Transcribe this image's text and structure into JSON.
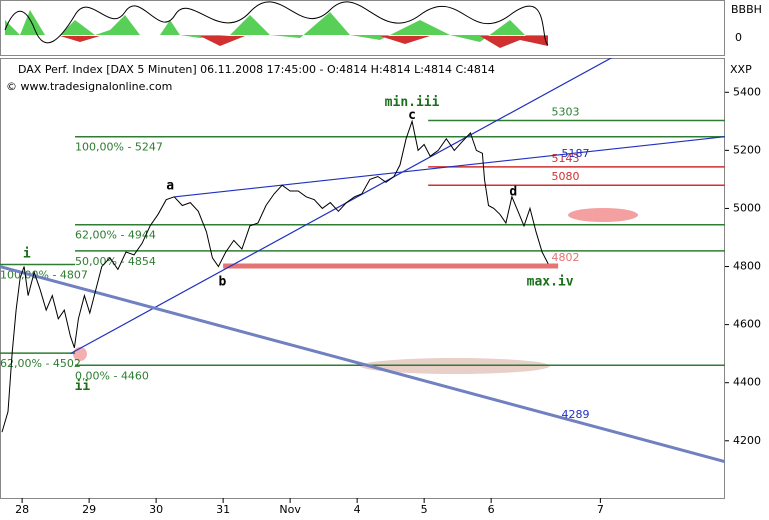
{
  "chart_data": {
    "type": "line",
    "header": "DAX Perf. Index [DAX  5 Minuten] 06.11.2008 17:45:00 - O:4814 H:4814 L:4814 C:4814",
    "source": "© www.tradesignalonline.com",
    "axis_name": "XXP",
    "indicator_name": "BBBH",
    "indicator_tick": "0",
    "xlim": [
      -0.33,
      10.49
    ],
    "ylim": [
      4003,
      5518
    ],
    "xticks": [
      {
        "value": 0,
        "label": "28"
      },
      {
        "value": 1,
        "label": "29"
      },
      {
        "value": 2,
        "label": "30"
      },
      {
        "value": 3,
        "label": "31"
      },
      {
        "value": 4,
        "label": "Nov"
      },
      {
        "value": 5,
        "label": "4"
      },
      {
        "value": 6,
        "label": "5"
      },
      {
        "value": 7,
        "label": "6"
      },
      {
        "value": 8.63,
        "label": "7"
      }
    ],
    "yticks": [
      4200,
      4400,
      4600,
      4800,
      5000,
      5200,
      5400
    ],
    "series": [
      {
        "color": "#000000",
        "x": [
          -0.3,
          -0.21,
          -0.15,
          -0.09,
          -0.03,
          0.03,
          0.09,
          0.18,
          0.27,
          0.36,
          0.45,
          0.54,
          0.63,
          0.72,
          0.78,
          0.84,
          0.93,
          1.01,
          1.1,
          1.19,
          1.31,
          1.43,
          1.55,
          1.67,
          1.79,
          1.91,
          2.03,
          2.15,
          2.27,
          2.39,
          2.51,
          2.63,
          2.75,
          2.84,
          2.93,
          3.04,
          3.16,
          3.28,
          3.4,
          3.52,
          3.64,
          3.76,
          3.88,
          4.0,
          4.12,
          4.24,
          4.36,
          4.48,
          4.6,
          4.72,
          4.84,
          4.96,
          5.07,
          5.19,
          5.31,
          5.43,
          5.55,
          5.64,
          5.73,
          5.82,
          5.91,
          6.0,
          6.09,
          6.21,
          6.33,
          6.45,
          6.57,
          6.69,
          6.78,
          6.87,
          6.9,
          6.96,
          7.04,
          7.13,
          7.22,
          7.31,
          7.4,
          7.49,
          7.58,
          7.67,
          7.76,
          7.85
        ],
        "values": [
          4230,
          4300,
          4500,
          4650,
          4760,
          4800,
          4700,
          4780,
          4720,
          4650,
          4700,
          4620,
          4650,
          4560,
          4520,
          4620,
          4700,
          4640,
          4720,
          4800,
          4830,
          4790,
          4850,
          4840,
          4880,
          4940,
          4980,
          5030,
          5040,
          5010,
          5020,
          4990,
          4920,
          4830,
          4800,
          4850,
          4890,
          4860,
          4940,
          4950,
          5010,
          5050,
          5080,
          5060,
          5060,
          5040,
          5030,
          5000,
          5020,
          4990,
          5020,
          5040,
          5050,
          5100,
          5110,
          5090,
          5110,
          5150,
          5240,
          5300,
          5200,
          5220,
          5180,
          5200,
          5240,
          5200,
          5230,
          5260,
          5200,
          5190,
          5100,
          5010,
          5000,
          4980,
          4950,
          5040,
          4990,
          4940,
          5000,
          4920,
          4850,
          4810
        ]
      }
    ],
    "levels": [
      {
        "value": 5303,
        "label": "5303",
        "color": "#2e7d32",
        "from": 6.06,
        "to": 10.49,
        "side": "right"
      },
      {
        "value": 5247,
        "label": "100,00% - 5247",
        "color": "#2e7d32",
        "from": 0.79,
        "to": 10.49,
        "side": "left"
      },
      {
        "value": 5143,
        "label": "5143",
        "color": "#d32f2f",
        "from": 6.06,
        "to": 10.49,
        "side": "right"
      },
      {
        "value": 5080,
        "label": "5080",
        "color": "#d32f2f",
        "from": 6.06,
        "to": 10.49,
        "side": "right"
      },
      {
        "value": 4944,
        "label": "62,00% - 4944",
        "color": "#2e7d32",
        "from": 0.79,
        "to": 10.49,
        "side": "left"
      },
      {
        "value": 4854,
        "label": "50,00% - 4854",
        "color": "#2e7d32",
        "from": 0.79,
        "to": 10.49,
        "side": "left"
      },
      {
        "value": 4807,
        "label": "100,00% - 4807",
        "color": "#2e7d32",
        "from": -0.33,
        "to": 0.79,
        "side": "left"
      },
      {
        "value": 4802,
        "label": "4802",
        "color": "#e57373",
        "from": 3.0,
        "to": 8.0,
        "side": "right"
      },
      {
        "value": 4502,
        "label": "62,00% - 4502",
        "color": "#2e7d32",
        "from": -0.33,
        "to": 0.79,
        "side": "left"
      },
      {
        "value": 4460,
        "label": "0,00% - 4460",
        "color": "#2e7d32",
        "from": 0.79,
        "to": 10.49,
        "side": "left"
      }
    ],
    "trendlines": [
      {
        "x": [
          0.72,
          9.6
        ],
        "y": [
          4500,
          5620
        ],
        "color": "#2030c0"
      },
      {
        "x": [
          2.28,
          10.49
        ],
        "y": [
          5040,
          5247
        ],
        "color": "#2030c0",
        "label": "5187",
        "label_x": 8.05,
        "label_y": 5187
      },
      {
        "x": [
          -0.33,
          10.49
        ],
        "y": [
          4800,
          4128
        ],
        "color": "#7080c0",
        "label": "4289",
        "label_x": 8.05,
        "label_y": 4289
      }
    ],
    "annotations": [
      {
        "text": "min.iii",
        "x": 5.82,
        "y": 5365
      },
      {
        "text": "c",
        "x": 5.82,
        "y": 5320
      },
      {
        "text": "a",
        "x": 2.21,
        "y": 5078
      },
      {
        "text": "b",
        "x": 2.99,
        "y": 4746
      },
      {
        "text": "d",
        "x": 7.33,
        "y": 5057
      },
      {
        "text": "max.iv",
        "x": 7.88,
        "y": 4746
      },
      {
        "text": "i",
        "x": 0.07,
        "y": 4843
      },
      {
        "text": "ii",
        "x": 0.9,
        "y": 4387
      }
    ]
  }
}
